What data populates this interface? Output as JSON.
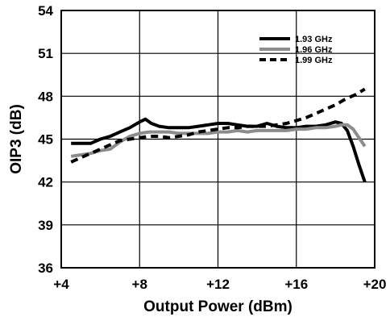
{
  "chart_data": {
    "type": "line",
    "xlabel": "Output Power (dBm)",
    "ylabel": "OIP3 (dB)",
    "xlim": [
      4,
      20
    ],
    "ylim": [
      36,
      54
    ],
    "x_ticks": [
      4,
      8,
      12,
      16,
      20
    ],
    "x_tick_labels": [
      "+4",
      "+8",
      "+12",
      "+16",
      "+20"
    ],
    "y_ticks": [
      36,
      39,
      42,
      45,
      48,
      51,
      54
    ],
    "y_tick_labels": [
      "36",
      "39",
      "42",
      "45",
      "48",
      "51",
      "54"
    ],
    "grid": true,
    "legend_position": "top-right",
    "series": [
      {
        "name": "1.93 GHz",
        "color": "#000000",
        "style": "solid",
        "x": [
          4.5,
          5.0,
          5.5,
          6.0,
          6.5,
          7.0,
          7.5,
          8.0,
          8.3,
          8.6,
          9.0,
          9.5,
          10.0,
          10.5,
          11.0,
          11.5,
          12.0,
          12.5,
          13.0,
          13.5,
          14.0,
          14.5,
          15.0,
          15.5,
          16.0,
          16.5,
          17.0,
          17.5,
          18.0,
          18.3,
          18.6,
          18.9,
          19.2,
          19.5
        ],
        "y": [
          44.7,
          44.7,
          44.7,
          45.0,
          45.2,
          45.5,
          45.8,
          46.2,
          46.4,
          46.1,
          45.9,
          45.8,
          45.8,
          45.8,
          45.9,
          46.0,
          46.1,
          46.1,
          46.0,
          45.9,
          45.9,
          46.1,
          45.9,
          45.8,
          45.8,
          45.9,
          45.9,
          46.0,
          46.2,
          46.1,
          45.6,
          44.5,
          43.2,
          42.0
        ]
      },
      {
        "name": "1.96 GHz",
        "color": "#8c8c8c",
        "style": "solid",
        "x": [
          4.5,
          5.0,
          5.5,
          6.0,
          6.5,
          7.0,
          7.5,
          8.0,
          8.5,
          9.0,
          9.5,
          10.0,
          10.5,
          11.0,
          11.5,
          12.0,
          12.5,
          13.0,
          13.5,
          14.0,
          14.5,
          15.0,
          15.5,
          16.0,
          16.5,
          17.0,
          17.5,
          18.0,
          18.3,
          18.6,
          18.9,
          19.2,
          19.5
        ],
        "y": [
          43.8,
          43.9,
          44.0,
          44.2,
          44.3,
          44.8,
          45.2,
          45.4,
          45.5,
          45.5,
          45.5,
          45.4,
          45.4,
          45.4,
          45.4,
          45.5,
          45.5,
          45.6,
          45.5,
          45.6,
          45.6,
          45.6,
          45.6,
          45.7,
          45.7,
          45.8,
          45.8,
          45.9,
          46.0,
          46.0,
          45.7,
          45.1,
          44.5
        ]
      },
      {
        "name": "1.99 GHz",
        "color": "#000000",
        "style": "dashed",
        "x": [
          4.5,
          5.0,
          5.5,
          6.0,
          6.5,
          7.0,
          7.5,
          8.0,
          8.5,
          9.0,
          9.5,
          10.0,
          10.5,
          11.0,
          11.5,
          12.0,
          12.5,
          13.0,
          13.5,
          14.0,
          14.5,
          15.0,
          15.5,
          16.0,
          16.5,
          17.0,
          17.5,
          18.0,
          18.5,
          19.0,
          19.5
        ],
        "y": [
          43.4,
          43.7,
          44.0,
          44.3,
          44.6,
          44.9,
          45.0,
          45.1,
          45.2,
          45.2,
          45.1,
          45.2,
          45.3,
          45.5,
          45.6,
          45.7,
          45.8,
          45.8,
          45.9,
          45.9,
          45.9,
          46.0,
          46.1,
          46.3,
          46.5,
          46.8,
          47.1,
          47.4,
          47.8,
          48.1,
          48.5
        ]
      }
    ]
  }
}
